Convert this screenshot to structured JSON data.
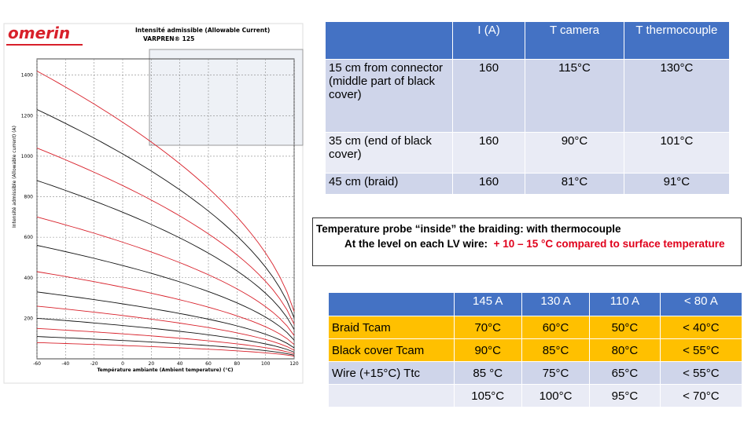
{
  "image_chart": {
    "brand": "omerin",
    "title": "Intensité admissible (Allowable Current)",
    "subtitle": "VARPREN® 125",
    "y_label": "Intensité admissible (Allowable current) (A)",
    "x_label": "Température ambiante (Ambient temperature) (°C)",
    "xlim": [
      -60,
      120
    ],
    "xticks": [
      -60,
      -40,
      -20,
      0,
      20,
      40,
      60,
      80,
      100,
      120
    ],
    "ylim": [
      0,
      1480
    ],
    "yticks": [
      200,
      400,
      600,
      800,
      1000,
      1200,
      1400
    ]
  },
  "table_top": {
    "header": [
      "I (A)",
      "T camera",
      "T thermocouple"
    ],
    "rows": [
      {
        "label": "15 cm from connector (middle part of black cover)",
        "cells": [
          "160",
          "115°C",
          "130°C"
        ]
      },
      {
        "label": "35 cm (end of black cover)",
        "cells": [
          "160",
          "90°C",
          "101°C"
        ]
      },
      {
        "label": "45 cm (braid)",
        "cells": [
          "160",
          "81°C",
          "91°C"
        ]
      }
    ]
  },
  "note": {
    "line1": "Temperature probe “inside” the braiding: with thermocouple",
    "line2": "At the level on each LV wire:",
    "highlight": "+ 10 – 15 °C compared to surface temperature"
  },
  "table_bottom": {
    "header": [
      "145 A",
      "130 A",
      "110 A",
      "< 80 A"
    ],
    "rows": [
      {
        "label": "Braid  Tcam",
        "cells": [
          "70°C",
          "60°C",
          "50°C",
          "< 40°C"
        ]
      },
      {
        "label": "Black cover Tcam",
        "cells": [
          "90°C",
          "85°C",
          "80°C",
          "< 55°C"
        ]
      },
      {
        "label": "Wire (+15°C) Ttc",
        "cells": [
          "85 °C",
          "75°C",
          "65°C",
          "< 55°C"
        ]
      },
      {
        "cells": [
          "105°C",
          "100°C",
          "95°C",
          "< 70°C"
        ]
      }
    ]
  }
}
